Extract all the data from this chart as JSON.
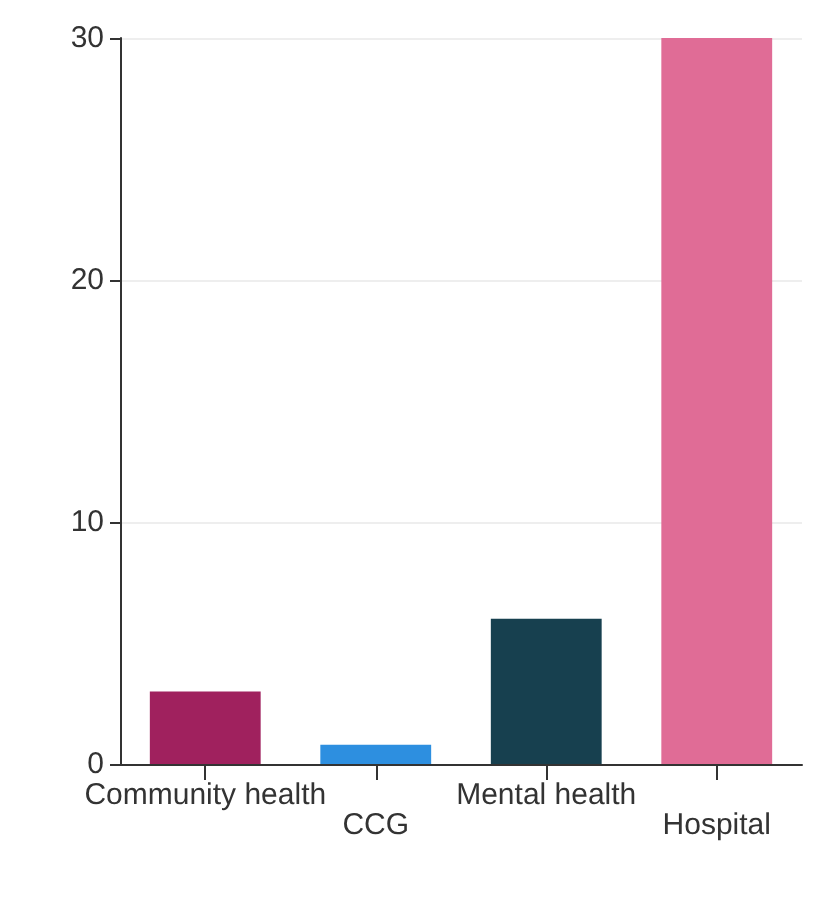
{
  "chart_data": {
    "type": "bar",
    "categories": [
      "Community health",
      "CCG",
      "Mental health",
      "Hospital"
    ],
    "values": [
      3,
      0.8,
      6,
      30
    ],
    "colors": [
      "#a0215e",
      "#2d8fe0",
      "#17404f",
      "#e06c96"
    ],
    "ylim": [
      0,
      30
    ],
    "yticks": [
      0,
      10,
      20,
      30
    ],
    "grid": "y"
  }
}
